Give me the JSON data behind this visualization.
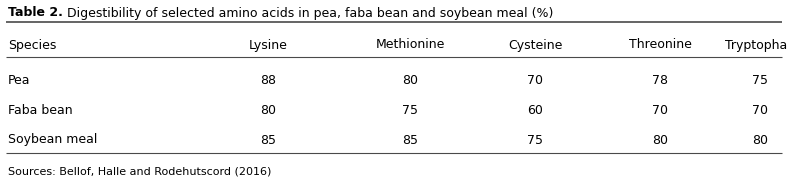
{
  "title_bold": "Table 2.",
  "title_normal": " Digestibility of selected amino acids in pea, faba bean and soybean meal (%)",
  "columns": [
    "Species",
    "Lysine",
    "Methionine",
    "Cysteine",
    "Threonine",
    "Tryptophan"
  ],
  "rows": [
    [
      "Pea",
      "88",
      "80",
      "70",
      "78",
      "75"
    ],
    [
      "Faba bean",
      "80",
      "75",
      "60",
      "70",
      "70"
    ],
    [
      "Soybean meal",
      "85",
      "85",
      "75",
      "80",
      "80"
    ]
  ],
  "source": "Sources: Bellof, Halle and Rodehutscord (2016)",
  "col_x_left": [
    8,
    140,
    268,
    410,
    535,
    660
  ],
  "col_x_center": [
    140,
    268,
    410,
    535,
    660,
    760
  ],
  "background_color": "#ffffff",
  "line_color": "#4a4a4a",
  "text_color": "#000000",
  "title_fontsize": 9.0,
  "header_fontsize": 9.0,
  "cell_fontsize": 9.0,
  "source_fontsize": 8.0,
  "fig_width": 7.88,
  "fig_height": 1.94,
  "dpi": 100
}
